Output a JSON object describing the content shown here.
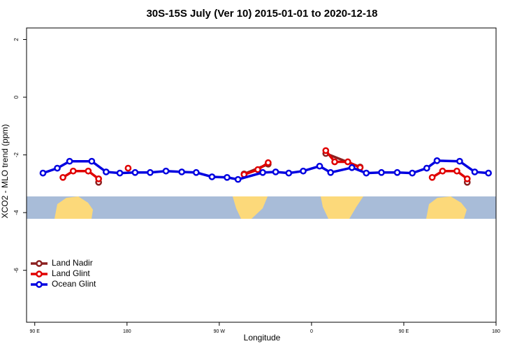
{
  "chart_data": {
    "type": "line",
    "title": "30S-15S July (Ver 10)   2015-01-01 to 2020-12-18",
    "x_label": "Longitude",
    "y_label": "XCO2 - MLO trend (ppm)",
    "xlim": [
      82,
      540
    ],
    "ylim": [
      -7.8,
      2.4
    ],
    "xticks": [
      {
        "value": 90,
        "label": "90 E"
      },
      {
        "value": 180,
        "label": "180"
      },
      {
        "value": 270,
        "label": "90 W"
      },
      {
        "value": 360,
        "label": "0"
      },
      {
        "value": 450,
        "label": "90 E"
      },
      {
        "value": 540,
        "label": "180"
      }
    ],
    "yticks": [
      2,
      0,
      -2,
      -4,
      -6
    ],
    "legend": "bottom-left",
    "series": [
      {
        "name": "Land Nadir",
        "color": "#8b2020",
        "x": [
          152.3,
          null,
          294.2,
          317.7,
          null,
          373.9,
          407.4,
          null,
          511.9
        ],
        "values": [
          -2.95,
          null,
          -2.66,
          -2.32,
          null,
          -1.95,
          -2.42,
          null,
          -2.95
        ]
      },
      {
        "name": "Land Glint",
        "color": "#e00000",
        "x": [
          117.5,
          127.5,
          142.2,
          152.3,
          null,
          181.1,
          null,
          294.2,
          307.6,
          317.7,
          null,
          373.9,
          382.6,
          395.4,
          407.4,
          null,
          477.7,
          487.8,
          501.8,
          511.9
        ],
        "values": [
          -2.78,
          -2.56,
          -2.56,
          -2.83,
          null,
          -2.46,
          null,
          -2.68,
          -2.51,
          -2.27,
          null,
          -1.85,
          -2.24,
          -2.24,
          -2.44,
          null,
          -2.78,
          -2.56,
          -2.56,
          -2.83
        ]
      },
      {
        "name": "Ocean Glint",
        "color": "#0000e0",
        "x": [
          98,
          112,
          124,
          145.6,
          159.6,
          173,
          187.9,
          202.6,
          218,
          233.4,
          247.5,
          262.9,
          277.6,
          288.3,
          312.4,
          325,
          337.8,
          351.9,
          367.9,
          378.6,
          399.4,
          413.4,
          428.2,
          443.6,
          458.3,
          472.4,
          482.4,
          504.5,
          519.2,
          532.6
        ],
        "values": [
          -2.63,
          -2.46,
          -2.22,
          -2.22,
          -2.59,
          -2.63,
          -2.61,
          -2.61,
          -2.56,
          -2.59,
          -2.61,
          -2.76,
          -2.78,
          -2.85,
          -2.61,
          -2.59,
          -2.63,
          -2.56,
          -2.39,
          -2.61,
          -2.44,
          -2.63,
          -2.61,
          -2.61,
          -2.63,
          -2.46,
          -2.2,
          -2.22,
          -2.59,
          -2.63
        ]
      }
    ]
  }
}
